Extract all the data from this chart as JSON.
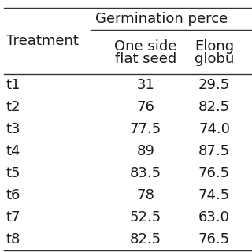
{
  "col0_header": "Treatment",
  "group_header": "Germination perce",
  "col1_header_line1": "One side",
  "col1_header_line2": "flat seed",
  "col2_header_line1": "Elong",
  "col2_header_line2": "globu",
  "treatments": [
    "t1",
    "t2",
    "t3",
    "t4",
    "t5",
    "t6",
    "t7",
    "t8"
  ],
  "col1_values": [
    "31",
    "76",
    "77.5",
    "89",
    "83.5",
    "78",
    "52.5",
    "82.5"
  ],
  "col2_values": [
    "29.5",
    "82.5",
    "74.0",
    "87.5",
    "76.5",
    "74.5",
    "63.0",
    "76.5"
  ],
  "background_color": "#ffffff",
  "text_color": "#1a1a1a",
  "font_size": 13,
  "line_color": "#333333",
  "line_width": 1.0
}
